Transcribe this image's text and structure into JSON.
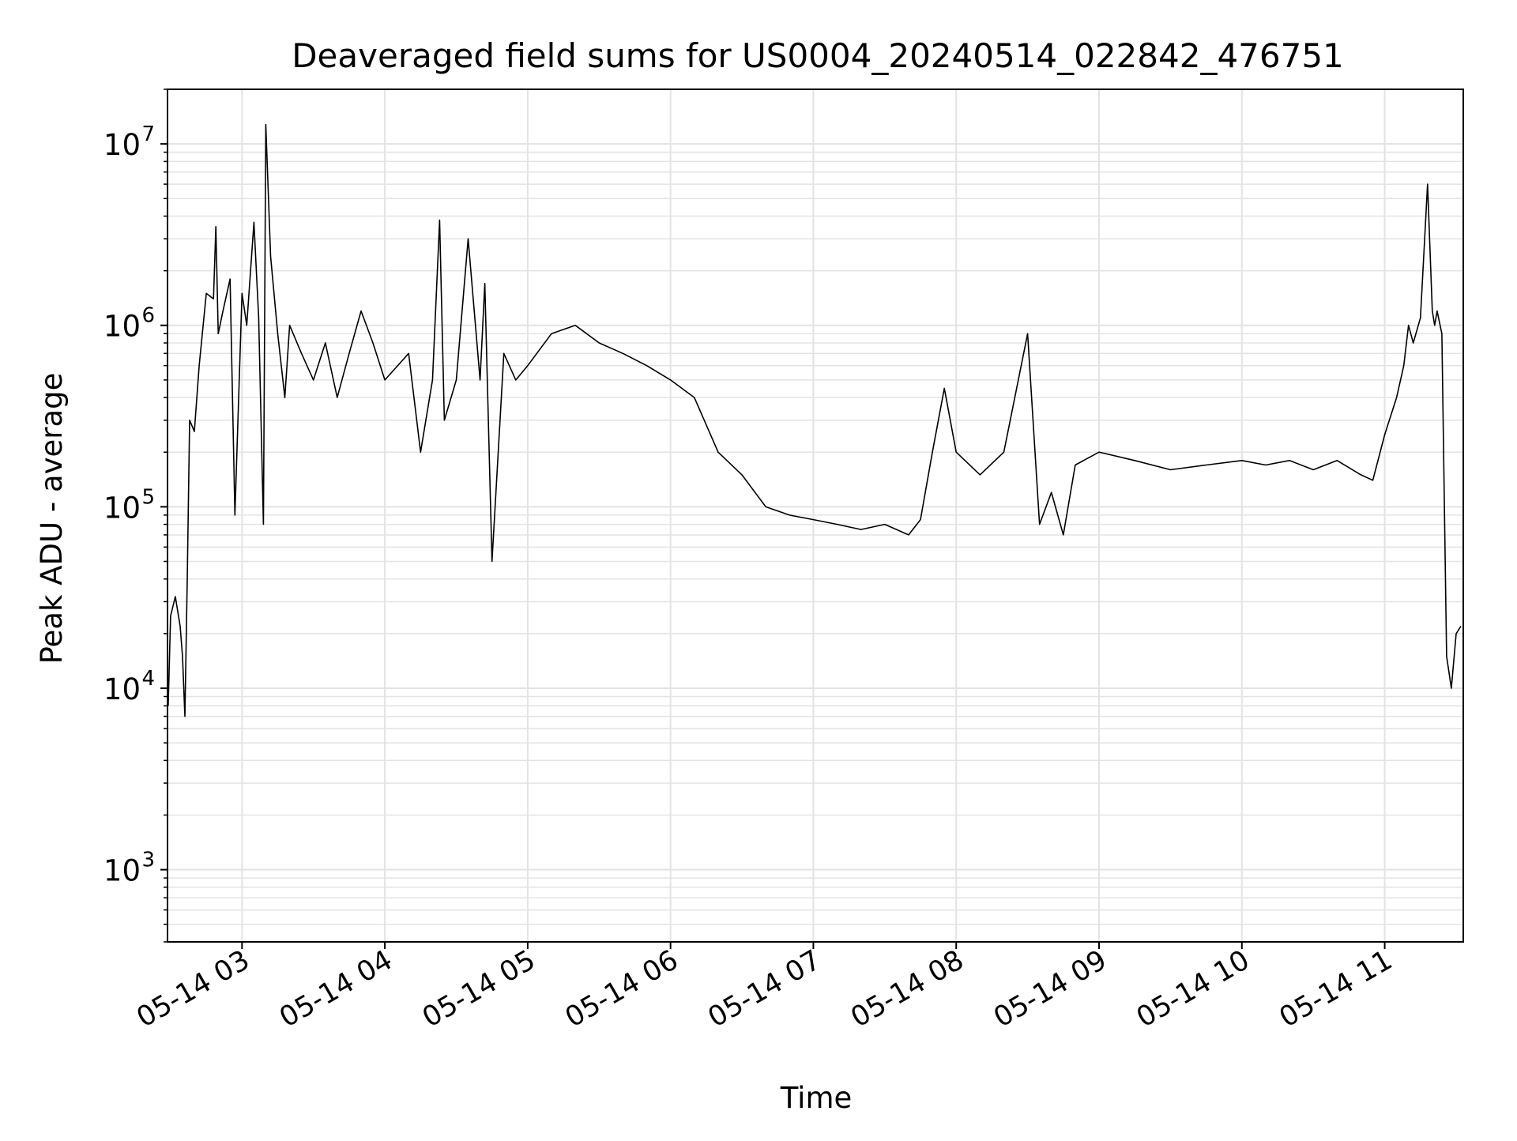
{
  "chart_data": {
    "type": "line",
    "title": "Deaveraged field sums for US0004_20240514_022842_476751",
    "xlabel": "Time",
    "ylabel": "Peak ADU - average",
    "yscale": "log",
    "ylim": [
      400,
      20000000
    ],
    "xlim": [
      "2024-05-14T02:28:42",
      "2024-05-14T11:33:00"
    ],
    "grid": true,
    "line_color": "#000000",
    "grid_color": "#e3e3e3",
    "x_ticks": [
      {
        "t": "2024-05-14T03:00",
        "label": "05-14 03"
      },
      {
        "t": "2024-05-14T04:00",
        "label": "05-14 04"
      },
      {
        "t": "2024-05-14T05:00",
        "label": "05-14 05"
      },
      {
        "t": "2024-05-14T06:00",
        "label": "05-14 06"
      },
      {
        "t": "2024-05-14T07:00",
        "label": "05-14 07"
      },
      {
        "t": "2024-05-14T08:00",
        "label": "05-14 08"
      },
      {
        "t": "2024-05-14T09:00",
        "label": "05-14 09"
      },
      {
        "t": "2024-05-14T10:00",
        "label": "05-14 10"
      },
      {
        "t": "2024-05-14T11:00",
        "label": "05-14 11"
      }
    ],
    "y_ticks": [
      {
        "value": 1000,
        "base": "10",
        "exp": "3"
      },
      {
        "value": 10000,
        "base": "10",
        "exp": "4"
      },
      {
        "value": 100000,
        "base": "10",
        "exp": "5"
      },
      {
        "value": 1000000,
        "base": "10",
        "exp": "6"
      },
      {
        "value": 10000000,
        "base": "10",
        "exp": "7"
      }
    ],
    "series": [
      {
        "x": [
          "2024-05-14T02:29",
          "2024-05-14T02:30",
          "2024-05-14T02:32",
          "2024-05-14T02:34",
          "2024-05-14T02:35",
          "2024-05-14T02:36",
          "2024-05-14T02:37",
          "2024-05-14T02:38",
          "2024-05-14T02:40",
          "2024-05-14T02:42",
          "2024-05-14T02:45",
          "2024-05-14T02:48",
          "2024-05-14T02:49",
          "2024-05-14T02:50",
          "2024-05-14T02:52",
          "2024-05-14T02:55",
          "2024-05-14T02:57",
          "2024-05-14T03:00",
          "2024-05-14T03:02",
          "2024-05-14T03:05",
          "2024-05-14T03:07",
          "2024-05-14T03:09",
          "2024-05-14T03:10",
          "2024-05-14T03:12",
          "2024-05-14T03:15",
          "2024-05-14T03:18",
          "2024-05-14T03:20",
          "2024-05-14T03:25",
          "2024-05-14T03:30",
          "2024-05-14T03:35",
          "2024-05-14T03:40",
          "2024-05-14T03:45",
          "2024-05-14T03:50",
          "2024-05-14T03:55",
          "2024-05-14T04:00",
          "2024-05-14T04:10",
          "2024-05-14T04:15",
          "2024-05-14T04:20",
          "2024-05-14T04:23",
          "2024-05-14T04:25",
          "2024-05-14T04:30",
          "2024-05-14T04:35",
          "2024-05-14T04:40",
          "2024-05-14T04:42",
          "2024-05-14T04:45",
          "2024-05-14T04:50",
          "2024-05-14T04:55",
          "2024-05-14T05:00",
          "2024-05-14T05:10",
          "2024-05-14T05:20",
          "2024-05-14T05:30",
          "2024-05-14T05:40",
          "2024-05-14T05:50",
          "2024-05-14T06:00",
          "2024-05-14T06:10",
          "2024-05-14T06:20",
          "2024-05-14T06:30",
          "2024-05-14T06:40",
          "2024-05-14T06:50",
          "2024-05-14T07:00",
          "2024-05-14T07:10",
          "2024-05-14T07:20",
          "2024-05-14T07:30",
          "2024-05-14T07:40",
          "2024-05-14T07:45",
          "2024-05-14T07:50",
          "2024-05-14T07:55",
          "2024-05-14T08:00",
          "2024-05-14T08:10",
          "2024-05-14T08:20",
          "2024-05-14T08:30",
          "2024-05-14T08:35",
          "2024-05-14T08:40",
          "2024-05-14T08:45",
          "2024-05-14T08:50",
          "2024-05-14T09:00",
          "2024-05-14T09:15",
          "2024-05-14T09:30",
          "2024-05-14T09:45",
          "2024-05-14T10:00",
          "2024-05-14T10:10",
          "2024-05-14T10:20",
          "2024-05-14T10:30",
          "2024-05-14T10:40",
          "2024-05-14T10:50",
          "2024-05-14T10:55",
          "2024-05-14T11:00",
          "2024-05-14T11:05",
          "2024-05-14T11:08",
          "2024-05-14T11:10",
          "2024-05-14T11:12",
          "2024-05-14T11:15",
          "2024-05-14T11:18",
          "2024-05-14T11:20",
          "2024-05-14T11:21",
          "2024-05-14T11:22",
          "2024-05-14T11:24",
          "2024-05-14T11:26",
          "2024-05-14T11:28",
          "2024-05-14T11:30",
          "2024-05-14T11:32"
        ],
        "y": [
          8000,
          25000,
          32000,
          22000,
          15000,
          7000,
          40000,
          300000,
          260000,
          600000,
          1500000,
          1400000,
          3500000,
          900000,
          1200000,
          1800000,
          90000,
          1500000,
          1000000,
          3700000,
          1100000,
          80000,
          12800000,
          2400000,
          900000,
          400000,
          1000000,
          700000,
          500000,
          800000,
          400000,
          700000,
          1200000,
          800000,
          500000,
          700000,
          200000,
          500000,
          3800000,
          300000,
          500000,
          3000000,
          500000,
          1700000,
          50000,
          700000,
          500000,
          600000,
          900000,
          1000000,
          800000,
          700000,
          600000,
          500000,
          400000,
          200000,
          150000,
          100000,
          90000,
          85000,
          80000,
          75000,
          80000,
          70000,
          85000,
          200000,
          450000,
          200000,
          150000,
          200000,
          900000,
          80000,
          120000,
          70000,
          170000,
          200000,
          180000,
          160000,
          170000,
          180000,
          170000,
          180000,
          160000,
          180000,
          150000,
          140000,
          250000,
          400000,
          600000,
          1000000,
          800000,
          1100000,
          6000000,
          1200000,
          1000000,
          1200000,
          900000,
          15000,
          10000,
          20000,
          22000
        ]
      }
    ]
  }
}
